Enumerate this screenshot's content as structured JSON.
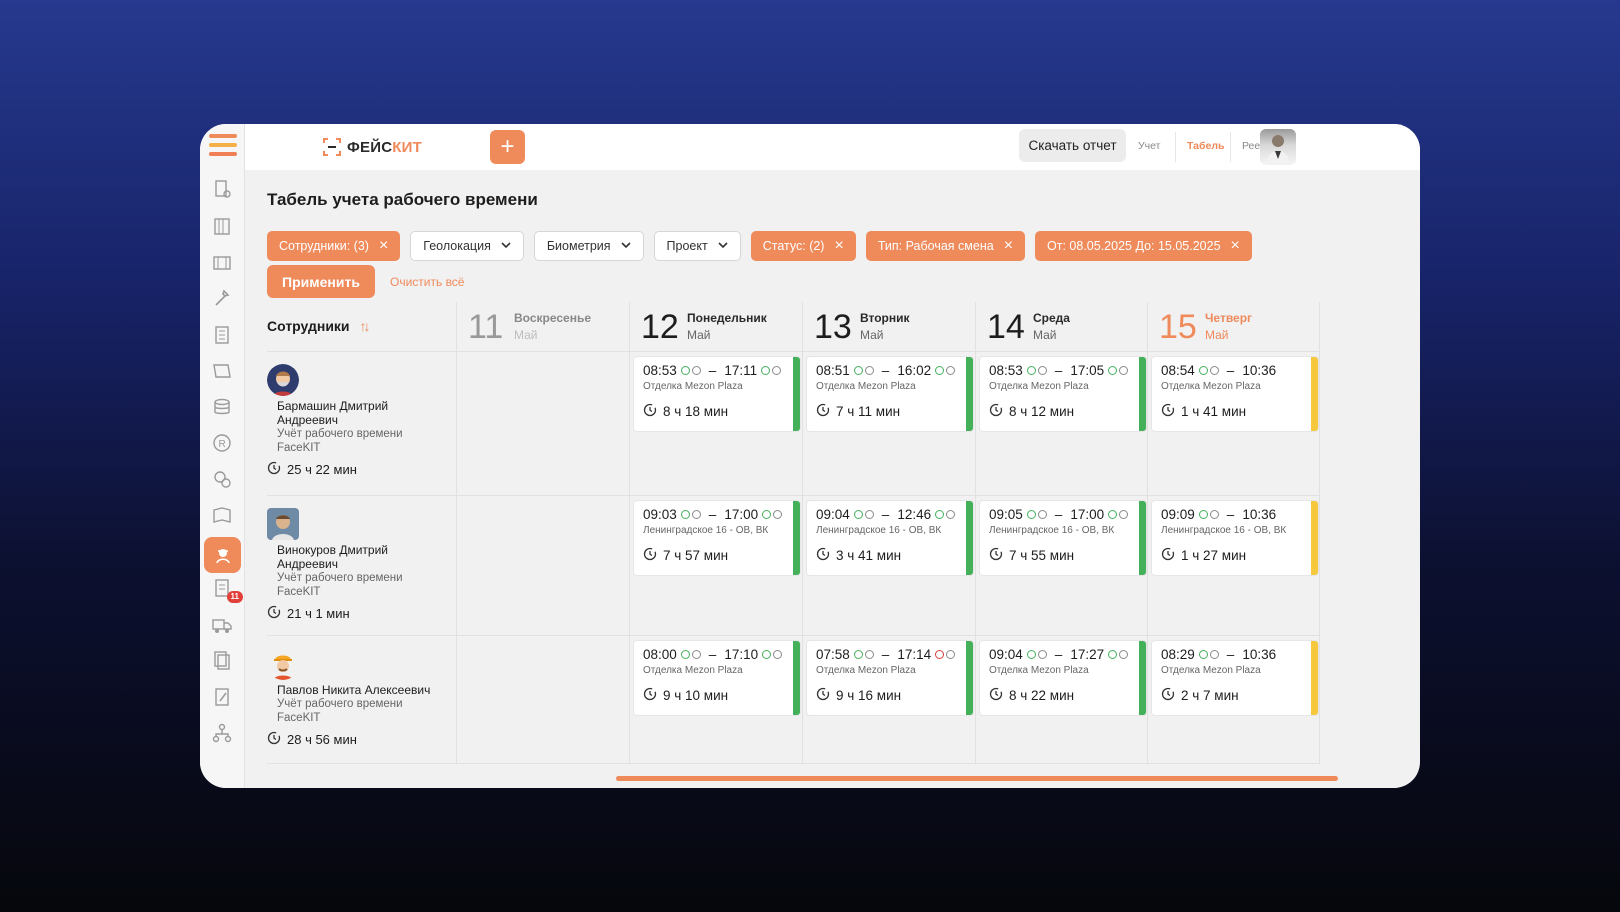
{
  "app": {
    "logo_left": "ФЕЙС",
    "logo_right": "КИТ",
    "plus": "+",
    "download_report": "Скачать отчет",
    "nav": [
      {
        "label": "Учет",
        "active": false
      },
      {
        "label": "Табель",
        "active": true
      },
      {
        "label": "Реестр",
        "active": false
      }
    ],
    "accent_color": "#ef8a5b",
    "sidebar_badge": "11"
  },
  "page": {
    "title": "Табель учета рабочего времени",
    "filters": [
      {
        "label": "Сотрудники: (3)",
        "active": true
      },
      {
        "label": "Геолокация",
        "active": false
      },
      {
        "label": "Биометрия",
        "active": false
      },
      {
        "label": "Проект",
        "active": false
      },
      {
        "label": "Статус: (2)",
        "active": true
      },
      {
        "label": "Тип: Рабочая смена",
        "active": true
      },
      {
        "label": "От: 08.05.2025 До: 15.05.2025",
        "active": true
      }
    ],
    "apply": "Применить",
    "clear_all": "Очистить всё"
  },
  "grid": {
    "employees_header": "Сотрудники",
    "sort_icon": "↑↓",
    "days": [
      {
        "num": "11",
        "name": "Воскресенье",
        "month": "Май",
        "state": "past"
      },
      {
        "num": "12",
        "name": "Понедельник",
        "month": "Май",
        "state": "normal"
      },
      {
        "num": "13",
        "name": "Вторник",
        "month": "Май",
        "state": "normal"
      },
      {
        "num": "14",
        "name": "Среда",
        "month": "Май",
        "state": "normal"
      },
      {
        "num": "15",
        "name": "Четверг",
        "month": "Май",
        "state": "today"
      }
    ],
    "rows": [
      {
        "name_line1": "Бармашин Дмитрий",
        "name_line2": "Андреевич",
        "role": "Учёт рабочего времени",
        "company": "FaceKIT",
        "total": "25 ч 22 мин",
        "shifts": [
          null,
          {
            "start": "08:53",
            "end": "17:11",
            "loc": "Отделка Mezon Plaza",
            "dur": "8 ч 18 мин",
            "status": "green",
            "end_face": "green"
          },
          {
            "start": "08:51",
            "end": "16:02",
            "loc": "Отделка Mezon Plaza",
            "dur": "7 ч 11 мин",
            "status": "green",
            "end_face": "green"
          },
          {
            "start": "08:53",
            "end": "17:05",
            "loc": "Отделка Mezon Plaza",
            "dur": "8 ч 12 мин",
            "status": "green",
            "end_face": "green"
          },
          {
            "start": "08:54",
            "end": "10:36",
            "loc": "Отделка Mezon Plaza",
            "dur": "1 ч 41 мин",
            "status": "yellow",
            "end_face": "none"
          }
        ]
      },
      {
        "name_line1": "Винокуров Дмитрий",
        "name_line2": "Андреевич",
        "role": "Учёт рабочего времени",
        "company": "FaceKIT",
        "total": "21 ч 1 мин",
        "shifts": [
          null,
          {
            "start": "09:03",
            "end": "17:00",
            "loc": "Ленинградское 16 - ОВ, ВК",
            "dur": "7 ч 57 мин",
            "status": "green",
            "end_face": "green"
          },
          {
            "start": "09:04",
            "end": "12:46",
            "loc": "Ленинградское 16 - ОВ, ВК",
            "dur": "3 ч 41 мин",
            "status": "green",
            "end_face": "green"
          },
          {
            "start": "09:05",
            "end": "17:00",
            "loc": "Ленинградское 16 - ОВ, ВК",
            "dur": "7 ч 55 мин",
            "status": "green",
            "end_face": "green"
          },
          {
            "start": "09:09",
            "end": "10:36",
            "loc": "Ленинградское 16 - ОВ, ВК",
            "dur": "1 ч 27 мин",
            "status": "yellow",
            "end_face": "none"
          }
        ]
      },
      {
        "name_line1": "Павлов Никита Алексеевич",
        "name_line2": "",
        "role": "Учёт рабочего времени",
        "company": "FaceKIT",
        "total": "28 ч 56 мин",
        "shifts": [
          null,
          {
            "start": "08:00",
            "end": "17:10",
            "loc": "Отделка Mezon Plaza",
            "dur": "9 ч 10 мин",
            "status": "green",
            "end_face": "green"
          },
          {
            "start": "07:58",
            "end": "17:14",
            "loc": "Отделка Mezon Plaza",
            "dur": "9 ч 16 мин",
            "status": "green",
            "end_face": "red"
          },
          {
            "start": "09:04",
            "end": "17:27",
            "loc": "Отделка Mezon Plaza",
            "dur": "8 ч 22 мин",
            "status": "green",
            "end_face": "green"
          },
          {
            "start": "08:29",
            "end": "10:36",
            "loc": "Отделка Mezon Plaza",
            "dur": "2 ч 7 мин",
            "status": "yellow",
            "end_face": "none"
          }
        ]
      }
    ]
  }
}
